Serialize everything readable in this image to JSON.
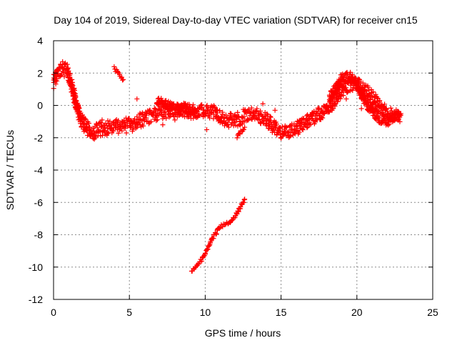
{
  "chart_data": {
    "type": "scatter",
    "title": "Day 104 of 2019, Sidereal Day-to-day VTEC variation (SDTVAR) for receiver cn15",
    "xlabel": "GPS time / hours",
    "ylabel": "SDTVAR / TECUs",
    "xlim": [
      0,
      25
    ],
    "ylim": [
      -12,
      4
    ],
    "xticks": [
      0,
      5,
      10,
      15,
      20,
      25
    ],
    "xtick_labels": [
      "0",
      "5",
      "10",
      "15",
      "20",
      "25"
    ],
    "yticks": [
      -12,
      -10,
      -8,
      -6,
      -4,
      -2,
      0,
      2,
      4
    ],
    "ytick_labels": [
      "-12",
      "-10",
      "-8",
      "-6",
      "-4",
      "-2",
      "0",
      "2",
      "4"
    ],
    "grid": true,
    "marker": "plus",
    "color": "#ff0000",
    "series": [
      {
        "name": "main-arc",
        "band": 0.45,
        "points": [
          [
            0.0,
            1.5
          ],
          [
            0.3,
            2.1
          ],
          [
            0.6,
            2.3
          ],
          [
            0.9,
            2.1
          ],
          [
            1.2,
            1.2
          ],
          [
            1.5,
            0.0
          ],
          [
            1.8,
            -0.9
          ],
          [
            2.2,
            -1.4
          ],
          [
            2.6,
            -1.7
          ],
          [
            3.0,
            -1.5
          ],
          [
            3.5,
            -1.4
          ],
          [
            4.0,
            -1.3
          ],
          [
            4.5,
            -1.25
          ],
          [
            5.0,
            -1.15
          ],
          [
            5.5,
            -1.0
          ],
          [
            6.0,
            -0.8
          ],
          [
            6.5,
            -0.6
          ],
          [
            7.0,
            -0.45
          ],
          [
            7.5,
            -0.35
          ],
          [
            8.0,
            -0.3
          ],
          [
            8.5,
            -0.3
          ],
          [
            9.0,
            -0.35
          ],
          [
            9.5,
            -0.4
          ],
          [
            10.0,
            -0.3
          ],
          [
            10.5,
            -0.4
          ],
          [
            11.0,
            -0.7
          ],
          [
            11.5,
            -0.9
          ],
          [
            12.0,
            -0.9
          ],
          [
            12.5,
            -0.7
          ],
          [
            13.0,
            -0.5
          ],
          [
            13.5,
            -0.6
          ],
          [
            14.0,
            -0.9
          ],
          [
            14.5,
            -1.3
          ],
          [
            15.0,
            -1.7
          ],
          [
            15.5,
            -1.6
          ],
          [
            16.0,
            -1.4
          ],
          [
            16.5,
            -1.1
          ],
          [
            17.0,
            -0.8
          ],
          [
            17.5,
            -0.5
          ],
          [
            18.0,
            -0.2
          ],
          [
            18.5,
            0.3
          ],
          [
            19.0,
            0.9
          ],
          [
            19.5,
            1.3
          ],
          [
            20.0,
            1.4
          ],
          [
            20.5,
            1.0
          ],
          [
            21.0,
            0.5
          ],
          [
            21.5,
            -0.1
          ],
          [
            22.0,
            -0.5
          ],
          [
            22.5,
            -0.7
          ],
          [
            22.9,
            -0.6
          ]
        ]
      },
      {
        "name": "upper-strand",
        "band": 0.25,
        "points": [
          [
            6.8,
            0.3
          ],
          [
            7.5,
            0.05
          ],
          [
            8.5,
            -0.2
          ],
          [
            9.5,
            -0.4
          ]
        ]
      },
      {
        "name": "evening-strand",
        "band": 0.3,
        "points": [
          [
            18.2,
            0.5
          ],
          [
            18.7,
            1.2
          ],
          [
            19.0,
            1.7
          ],
          [
            19.5,
            1.8
          ],
          [
            20.0,
            1.3
          ],
          [
            20.5,
            0.3
          ],
          [
            21.0,
            -0.4
          ],
          [
            21.5,
            -0.8
          ],
          [
            22.0,
            -1.0
          ],
          [
            22.5,
            -0.7
          ],
          [
            22.9,
            -0.5
          ]
        ]
      },
      {
        "name": "short-arc-morning",
        "band": 0.1,
        "points": [
          [
            4.0,
            2.3
          ],
          [
            4.2,
            2.05
          ],
          [
            4.4,
            1.8
          ],
          [
            4.6,
            1.6
          ]
        ]
      },
      {
        "name": "short-arc-noon",
        "band": 0.1,
        "points": [
          [
            12.1,
            -1.95
          ],
          [
            12.3,
            -1.7
          ],
          [
            12.5,
            -1.45
          ],
          [
            12.6,
            -1.35
          ]
        ]
      },
      {
        "name": "descending-arc",
        "band": 0.1,
        "points": [
          [
            9.1,
            -10.2
          ],
          [
            9.4,
            -10.0
          ],
          [
            9.8,
            -9.5
          ],
          [
            10.2,
            -8.8
          ],
          [
            10.6,
            -8.0
          ],
          [
            11.0,
            -7.5
          ],
          [
            11.5,
            -7.3
          ],
          [
            12.0,
            -6.8
          ],
          [
            12.3,
            -6.3
          ],
          [
            12.6,
            -5.8
          ]
        ]
      },
      {
        "name": "isolated-points",
        "band": 0,
        "points": [
          [
            5.5,
            0.4
          ],
          [
            5.2,
            -1.6
          ],
          [
            4.8,
            -1.7
          ],
          [
            3.2,
            -0.9
          ],
          [
            11.3,
            -1.1
          ],
          [
            10.1,
            -1.5
          ],
          [
            13.8,
            0.1
          ],
          [
            14.6,
            -0.3
          ],
          [
            18.3,
            -0.3
          ],
          [
            19.3,
            0.4
          ],
          [
            20.3,
            -0.2
          ],
          [
            21.2,
            -0.4
          ],
          [
            7.2,
            -1.2
          ],
          [
            8.0,
            -0.9
          ]
        ]
      }
    ]
  }
}
